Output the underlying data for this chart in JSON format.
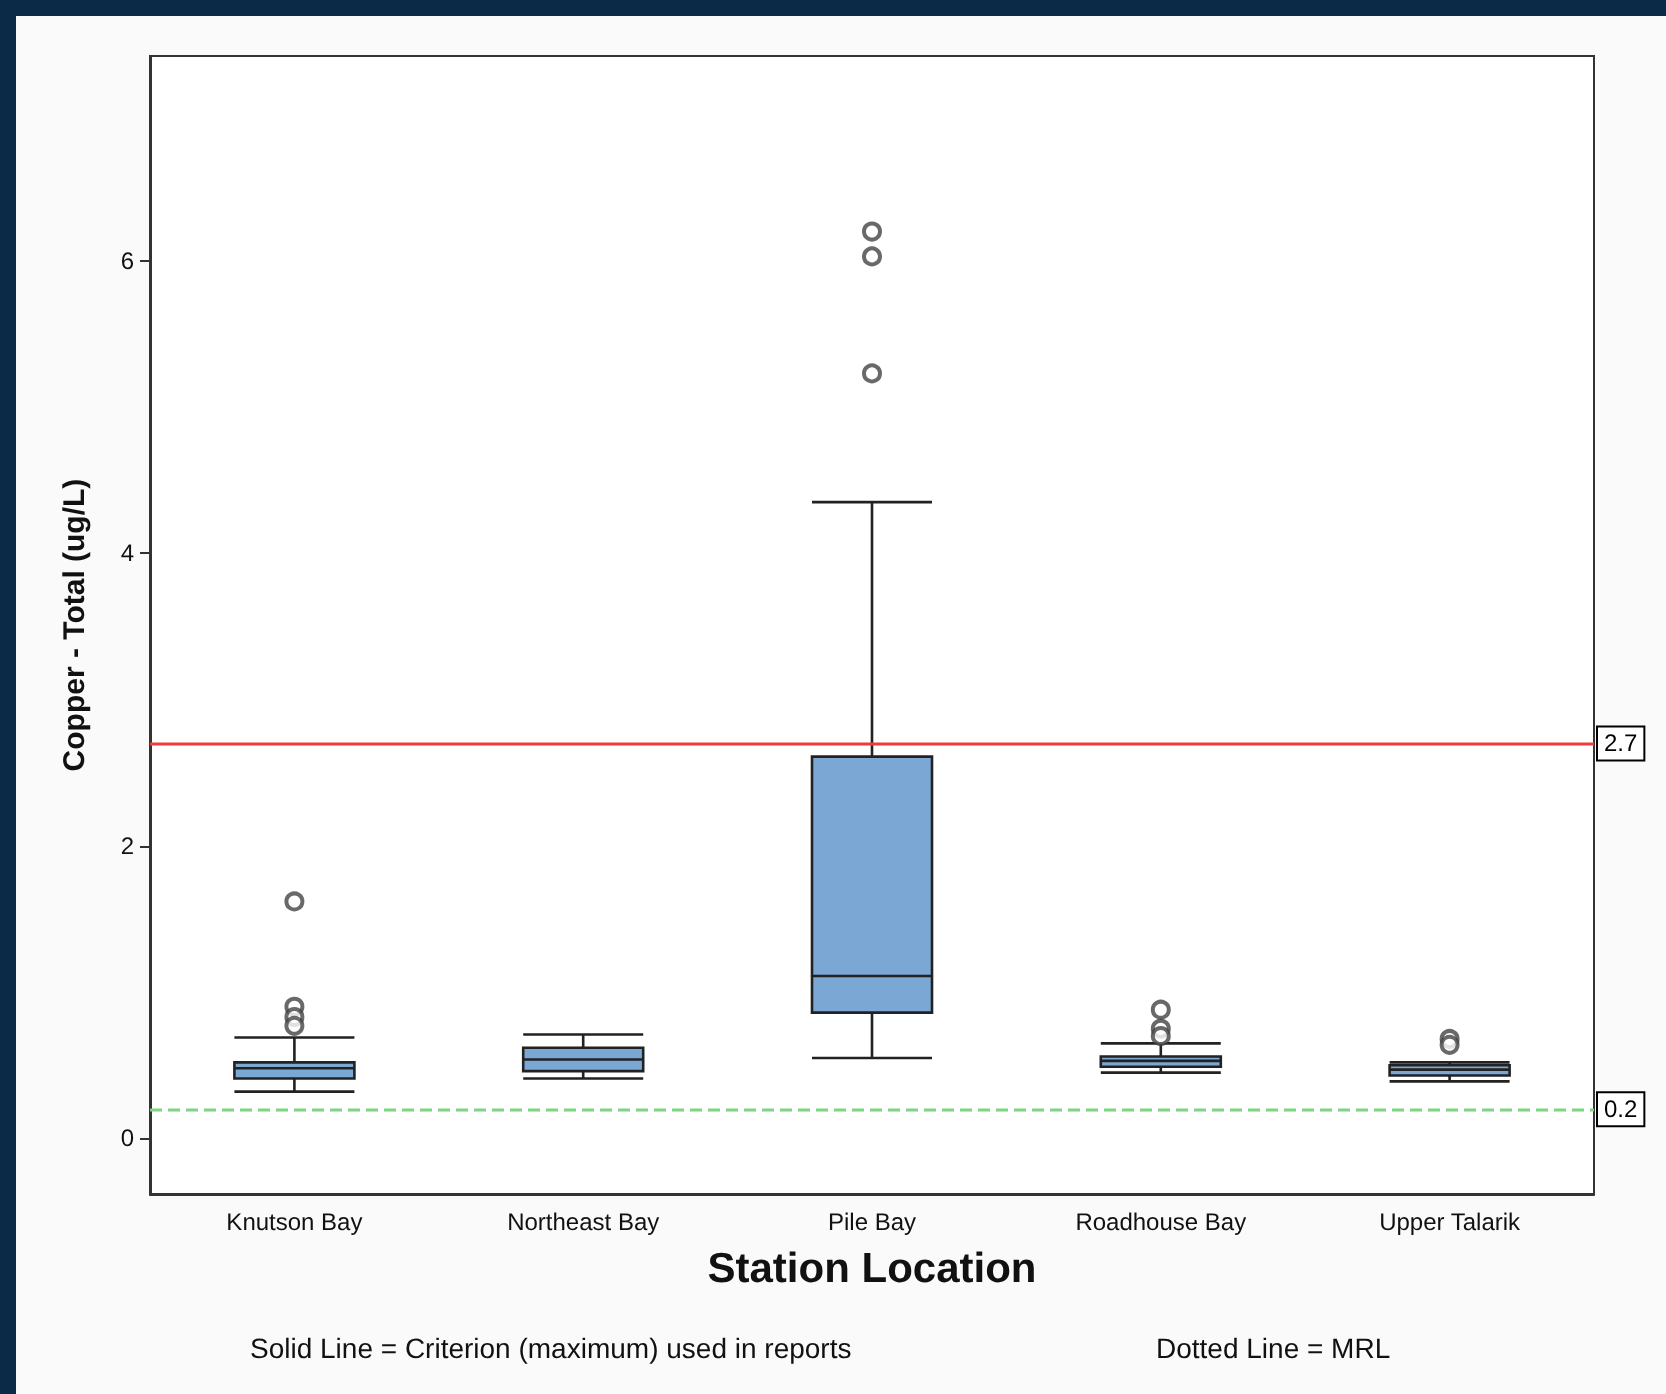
{
  "chart_data": {
    "type": "box",
    "xlabel": "Station Location",
    "ylabel": "Copper - Total (ug/L)",
    "categories": [
      "Knutson Bay",
      "Northeast Bay",
      "Pile Bay",
      "Roadhouse Bay",
      "Upper Talarik"
    ],
    "boxes": [
      {
        "low": 0.32,
        "q1": 0.41,
        "median": 0.48,
        "q3": 0.52,
        "high": 0.69,
        "outliers": [
          1.62,
          0.9,
          0.83,
          0.77
        ]
      },
      {
        "low": 0.41,
        "q1": 0.46,
        "median": 0.54,
        "q3": 0.62,
        "high": 0.71
      },
      {
        "low": 0.55,
        "q1": 0.86,
        "median": 1.11,
        "q3": 2.61,
        "high": 4.35,
        "outliers": [
          6.2,
          6.03,
          5.23
        ]
      },
      {
        "low": 0.45,
        "q1": 0.49,
        "median": 0.53,
        "q3": 0.56,
        "high": 0.65,
        "outliers": [
          0.88,
          0.75,
          0.7
        ]
      },
      {
        "low": 0.39,
        "q1": 0.43,
        "median": 0.47,
        "q3": 0.5,
        "high": 0.52,
        "outliers": [
          0.68,
          0.64
        ]
      }
    ],
    "color": "#7ba7d4",
    "ylim": [
      -0.38,
      7.4
    ],
    "yticks": [
      0,
      2,
      4,
      6
    ],
    "grid": false,
    "ref_lines": [
      {
        "axis": "y",
        "value": 2.7,
        "label": "2.7",
        "color": "#f03c3c",
        "line_style": "solid"
      },
      {
        "axis": "y",
        "value": 0.2,
        "label": "0.2",
        "color": "#7fd47f",
        "line_style": "dashed"
      }
    ],
    "annotations": [
      "Solid Line = Criterion (maximum) used in reports",
      "Dotted Line = MRL"
    ]
  }
}
